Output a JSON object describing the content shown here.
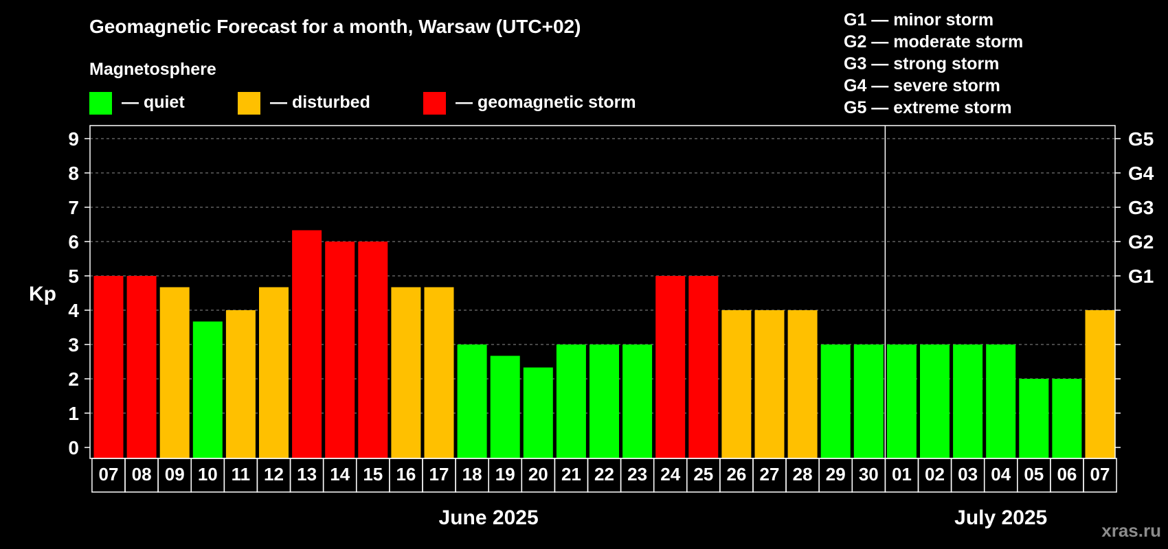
{
  "chart_data": {
    "type": "bar",
    "title": "Geomagnetic Forecast for a month, Warsaw (UTC+02)",
    "ylabel": "Kp",
    "ylim": [
      0,
      9
    ],
    "yticks": [
      "0",
      "1",
      "2",
      "3",
      "4",
      "5",
      "6",
      "7",
      "8",
      "9"
    ],
    "right_axis": [
      {
        "label": "G1",
        "kp": 5
      },
      {
        "label": "G2",
        "kp": 6
      },
      {
        "label": "G3",
        "kp": 7
      },
      {
        "label": "G4",
        "kp": 8
      },
      {
        "label": "G5",
        "kp": 9
      }
    ],
    "categories": [
      "07",
      "08",
      "09",
      "10",
      "11",
      "12",
      "13",
      "14",
      "15",
      "16",
      "17",
      "18",
      "19",
      "20",
      "21",
      "22",
      "23",
      "24",
      "25",
      "26",
      "27",
      "28",
      "29",
      "30",
      "01",
      "02",
      "03",
      "04",
      "05",
      "06",
      "07"
    ],
    "values": [
      5,
      5,
      4.67,
      3.67,
      4,
      4.67,
      6.33,
      6,
      6,
      4.67,
      4.67,
      3,
      2.67,
      2.33,
      3,
      3,
      3,
      5,
      5,
      4,
      4,
      4,
      3,
      3,
      3,
      3,
      3,
      3,
      2,
      2,
      4
    ],
    "levels": [
      "storm",
      "storm",
      "disturbed",
      "quiet",
      "disturbed",
      "disturbed",
      "storm",
      "storm",
      "storm",
      "disturbed",
      "disturbed",
      "quiet",
      "quiet",
      "quiet",
      "quiet",
      "quiet",
      "quiet",
      "storm",
      "storm",
      "disturbed",
      "disturbed",
      "disturbed",
      "quiet",
      "quiet",
      "quiet",
      "quiet",
      "quiet",
      "quiet",
      "quiet",
      "quiet",
      "disturbed"
    ],
    "months": [
      {
        "label": "June 2025",
        "start": 0,
        "end": 23
      },
      {
        "label": "July 2025",
        "start": 24,
        "end": 30
      }
    ],
    "grid": true
  },
  "legend": {
    "heading": "Magnetosphere",
    "items": [
      {
        "key": "quiet",
        "label": "— quiet",
        "color": "#00ff00"
      },
      {
        "key": "disturbed",
        "label": "— disturbed",
        "color": "#ffc000"
      },
      {
        "key": "storm",
        "label": "— geomagnetic storm",
        "color": "#ff0000"
      }
    ]
  },
  "storm_scale": [
    "G1 — minor storm",
    "G2 — moderate storm",
    "G3 — strong storm",
    "G4 — severe storm",
    "G5 — extreme storm"
  ],
  "watermark": "xras.ru"
}
